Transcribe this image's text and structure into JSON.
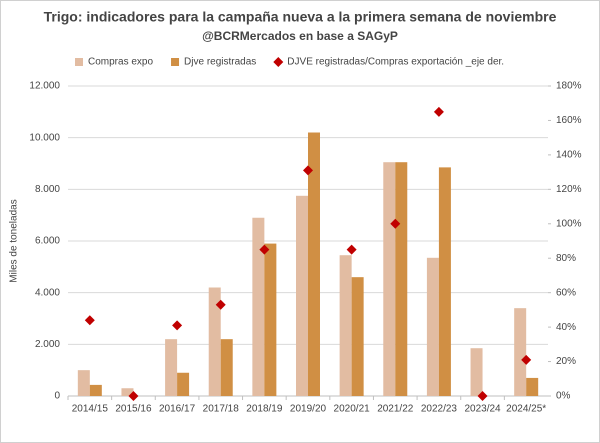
{
  "chart_data": {
    "type": "bar_scatter",
    "title": "Trigo: indicadores para la campaña nueva a la primera semana de noviembre",
    "subtitle": "@BCRMercados en base a SAGyP",
    "y_label": "Miles de toneladas",
    "categories": [
      "2014/15",
      "2015/16",
      "2016/17",
      "2017/18",
      "2018/19",
      "2019/20",
      "2020/21",
      "2021/22",
      "2022/23",
      "2023/24",
      "2024/25*"
    ],
    "series": [
      {
        "name": "Compras expo",
        "color": "#e2bca2",
        "kind": "bar",
        "values": [
          1000,
          300,
          2200,
          4200,
          6900,
          7750,
          5450,
          9050,
          5350,
          1850,
          3400
        ]
      },
      {
        "name": "Djve registradas",
        "color": "#d08f44",
        "kind": "bar",
        "values": [
          430,
          0,
          900,
          2200,
          5900,
          10200,
          4600,
          9050,
          8850,
          0,
          700
        ]
      },
      {
        "name": "DJVE registradas/Compras exportación _eje der.",
        "color": "#c00000",
        "kind": "marker",
        "axis": "y2",
        "values": [
          44,
          0,
          41,
          53,
          85,
          131,
          85,
          100,
          165,
          0,
          21
        ]
      }
    ],
    "ylim": [
      0,
      12000
    ],
    "yticks": [
      0,
      {
        "value": 2000,
        "label": "2.000"
      },
      {
        "value": 4000,
        "label": "4.000"
      },
      {
        "value": 6000,
        "label": "6.000"
      },
      {
        "value": 8000,
        "label": "8.000"
      },
      {
        "value": 10000,
        "label": "10.000"
      },
      {
        "value": 12000,
        "label": "12.000"
      }
    ],
    "y2lim": [
      0,
      180
    ],
    "y2ticks": [
      {
        "value": 0,
        "label": "0%"
      },
      {
        "value": 20,
        "label": "20%"
      },
      {
        "value": 40,
        "label": "40%"
      },
      {
        "value": 60,
        "label": "60%"
      },
      {
        "value": 80,
        "label": "80%"
      },
      {
        "value": 100,
        "label": "100%"
      },
      {
        "value": 120,
        "label": "120%"
      },
      {
        "value": 140,
        "label": "140%"
      },
      {
        "value": 160,
        "label": "160%"
      },
      {
        "value": 180,
        "label": "180%"
      }
    ],
    "grid": true
  }
}
